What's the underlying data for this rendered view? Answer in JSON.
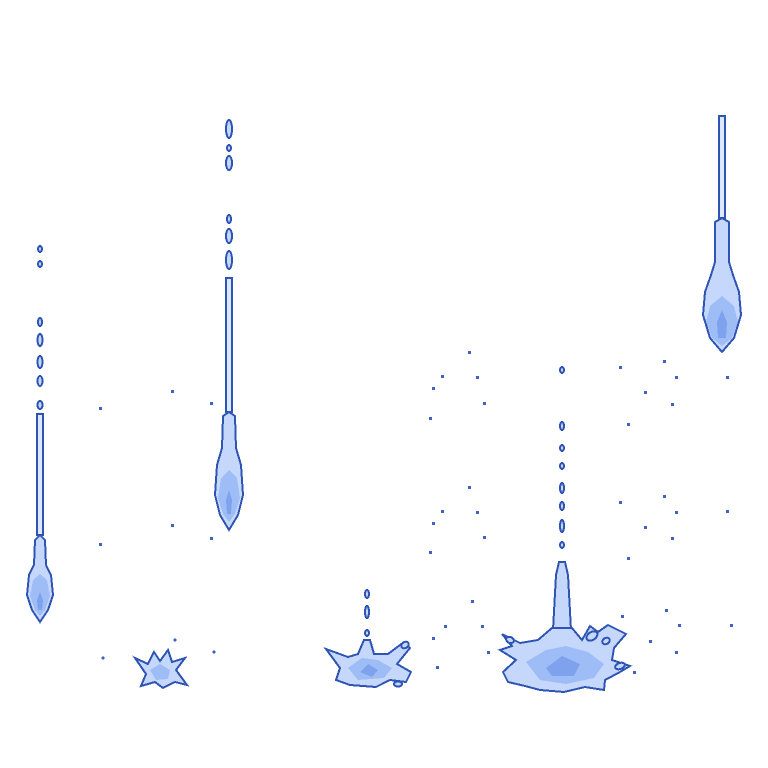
{
  "sprite_sheet": {
    "background_color": "#ffffff",
    "colors": {
      "outline": "#2f55b4",
      "highlight": "#dce8ff",
      "fill_light": "#c5d8fb",
      "fill_mid": "#9ebcf5",
      "fill_dark": "#7fa2ee",
      "mist": "#3d63bf"
    },
    "frames": [
      "falling-drop-long-trail",
      "falling-drop-short",
      "falling-drop-stream",
      "small-splash",
      "medium-splash",
      "large-splash"
    ]
  }
}
